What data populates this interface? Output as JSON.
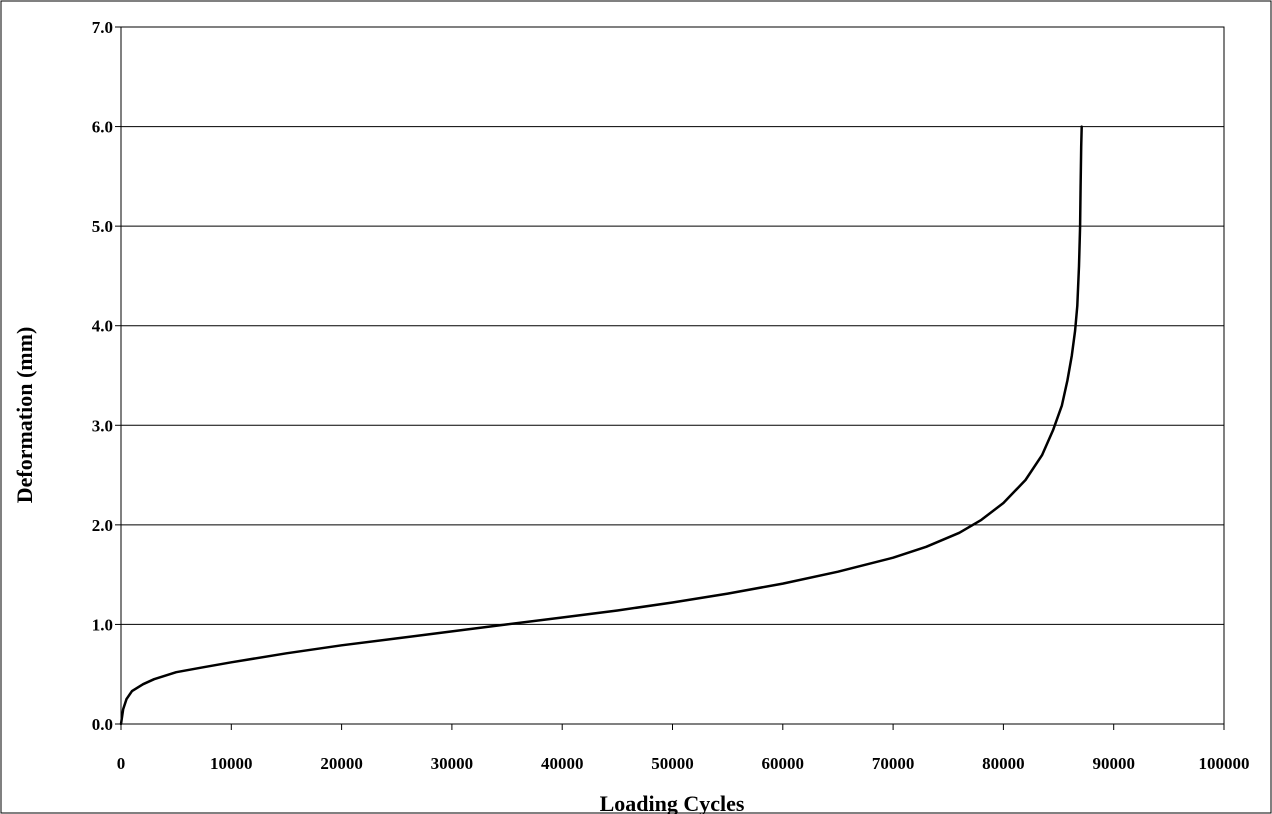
{
  "chart_data": {
    "type": "line",
    "title": "",
    "xlabel": "Loading Cycles",
    "ylabel": "Deformation (mm)",
    "xlim": [
      0,
      100000
    ],
    "ylim": [
      0,
      7
    ],
    "x_ticks": [
      0,
      10000,
      20000,
      30000,
      40000,
      50000,
      60000,
      70000,
      80000,
      90000,
      100000
    ],
    "x_tick_labels": [
      "0",
      "10000",
      "20000",
      "30000",
      "40000",
      "50000",
      "60000",
      "70000",
      "80000",
      "90000",
      "100000"
    ],
    "y_ticks": [
      0,
      1,
      2,
      3,
      4,
      5,
      6,
      7
    ],
    "y_tick_labels": [
      "0.0",
      "1.0",
      "2.0",
      "3.0",
      "4.0",
      "5.0",
      "6.0",
      "7.0"
    ],
    "grid": "horizontal",
    "legend": "none",
    "line_color": "#000000",
    "series": [
      {
        "x": [
          0,
          200,
          500,
          1000,
          2000,
          3000,
          5000,
          7500,
          10000,
          15000,
          20000,
          25000,
          30000,
          35000,
          40000,
          45000,
          50000,
          55000,
          60000,
          65000,
          70000,
          73000,
          76000,
          78000,
          80000,
          82000,
          83500,
          84500,
          85300,
          85800,
          86200,
          86500,
          86700,
          86850,
          86950,
          87000,
          87050,
          87100
        ],
        "y": [
          0.0,
          0.15,
          0.25,
          0.33,
          0.4,
          0.45,
          0.52,
          0.57,
          0.62,
          0.71,
          0.79,
          0.86,
          0.93,
          1.0,
          1.07,
          1.14,
          1.22,
          1.31,
          1.41,
          1.53,
          1.67,
          1.78,
          1.92,
          2.05,
          2.22,
          2.45,
          2.7,
          2.95,
          3.2,
          3.45,
          3.7,
          3.95,
          4.2,
          4.6,
          5.0,
          5.4,
          5.8,
          6.0
        ]
      }
    ]
  }
}
